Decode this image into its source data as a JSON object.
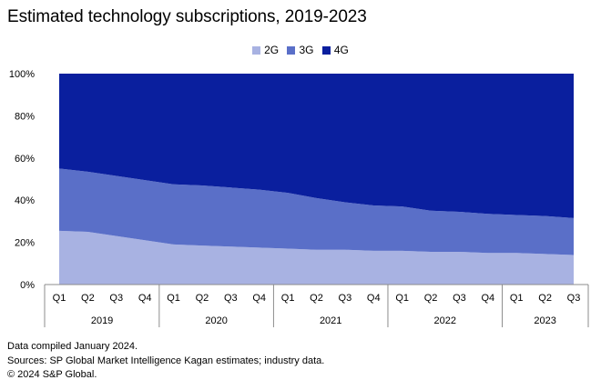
{
  "chart_data": {
    "type": "area",
    "stacked": true,
    "title": "Estimated technology subscriptions, 2019-2023",
    "categories": [
      "Q1",
      "Q2",
      "Q3",
      "Q4",
      "Q1",
      "Q2",
      "Q3",
      "Q4",
      "Q1",
      "Q2",
      "Q3",
      "Q4",
      "Q1",
      "Q2",
      "Q3",
      "Q4",
      "Q1",
      "Q2",
      "Q3"
    ],
    "years": [
      {
        "label": "2019",
        "count": 4
      },
      {
        "label": "2020",
        "count": 4
      },
      {
        "label": "2021",
        "count": 4
      },
      {
        "label": "2022",
        "count": 4
      },
      {
        "label": "2023",
        "count": 3
      }
    ],
    "series": [
      {
        "name": "2G",
        "color": "#a8b2e2",
        "values": [
          25.5,
          25,
          23,
          21,
          19,
          18.5,
          18,
          17.5,
          17,
          16.5,
          16.5,
          16,
          16,
          15.5,
          15.5,
          15,
          15,
          14.5,
          14
        ]
      },
      {
        "name": "3G",
        "color": "#5a6fc8",
        "values": [
          29.5,
          28.5,
          28.5,
          28.5,
          28.5,
          28.5,
          28,
          27.5,
          26.5,
          24.5,
          22.5,
          21.5,
          21,
          19.5,
          19,
          18.5,
          18,
          18,
          17.5
        ]
      },
      {
        "name": "4G",
        "color": "#0a1f9e",
        "values": [
          45,
          46.5,
          48.5,
          50.5,
          52.5,
          53,
          54,
          55,
          56.5,
          59,
          61,
          62.5,
          63,
          65,
          65.5,
          66.5,
          67,
          67.5,
          68.5
        ]
      }
    ],
    "y_ticks": [
      "0%",
      "20%",
      "40%",
      "60%",
      "80%",
      "100%"
    ],
    "ylim": [
      0,
      100
    ],
    "legend_position": "top-center"
  },
  "footer": {
    "line1": "Data compiled January 2024.",
    "line2": "Sources: SP Global Market Intelligence Kagan estimates; industry data.",
    "line3": "© 2024 S&P Global."
  }
}
